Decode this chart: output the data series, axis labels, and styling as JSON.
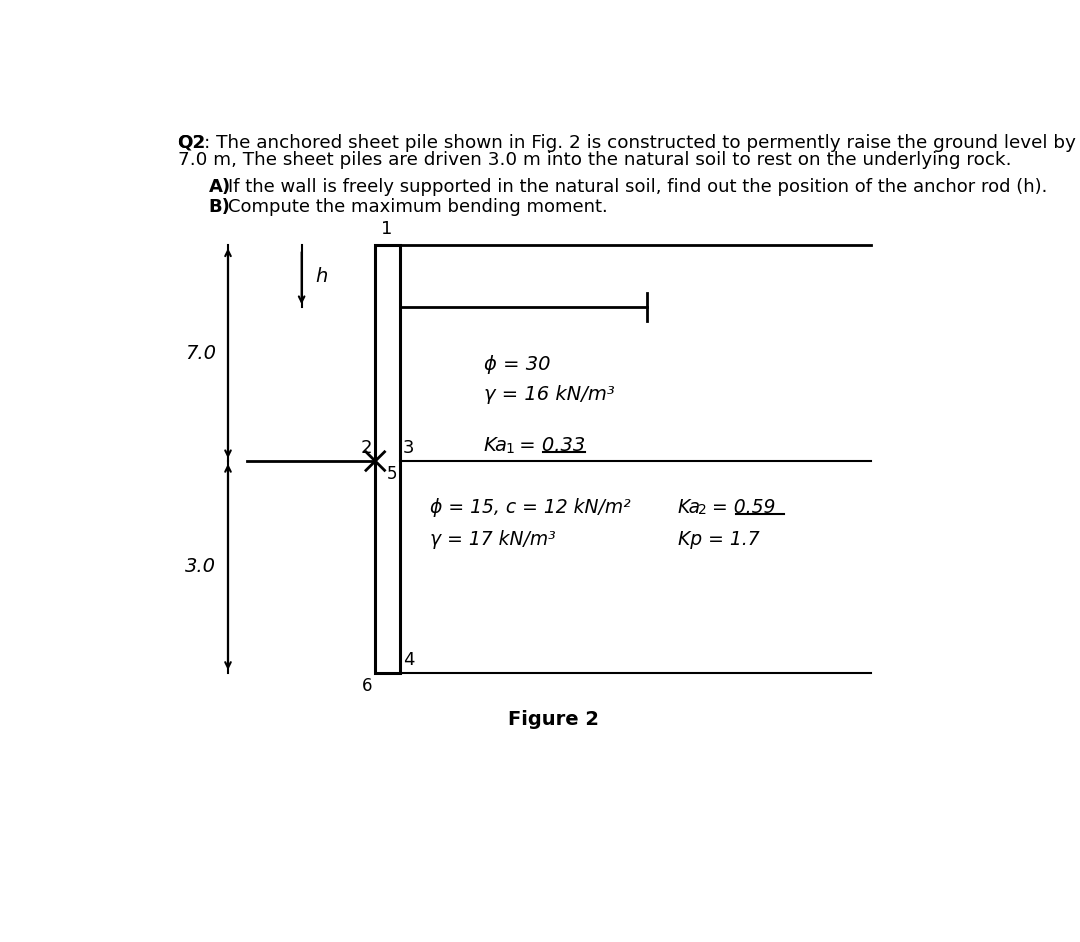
{
  "title_line1": "Q2: The anchored sheet pile shown in Fig. 2 is constructed to permently raise the ground level by",
  "title_line2": "7.0 m, The sheet piles are driven 3.0 m into the natural soil to rest on the underlying rock.",
  "sub_a_bold": "A)",
  "sub_a_text": " If the wall is freely supported in the natural soil, find out the position of the anchor rod (h).",
  "sub_b_bold": "B)",
  "sub_b_text": "  Compute the maximum bending moment.",
  "figure_label": "Figure 2",
  "dim_7": "7.0",
  "dim_3": "3.0",
  "label_h": "h",
  "soil1_phi": "ϕ = 30",
  "soil1_gamma": "γ = 16 kN/m³",
  "soil1_ka": "Ka",
  "soil1_ka_sub": "1",
  "soil1_ka_val": " = 0.33",
  "soil2_phi_c": "ϕ = 15, c = 12 kN/m²",
  "soil2_ka": "Ka",
  "soil2_ka_sub": "2",
  "soil2_ka_val": " = 0.59",
  "soil2_gamma": "γ = 17 kN/m³",
  "soil2_kp": "Kp = 1.7",
  "pt1": "1",
  "pt2": "2",
  "pt3": "3",
  "pt4": "4",
  "pt5": "5",
  "pt6": "6",
  "bg_color": "#ffffff",
  "lc": "#000000"
}
